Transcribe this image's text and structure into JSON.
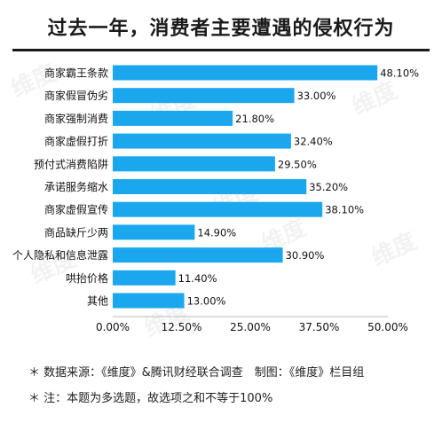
{
  "title": "过去一年，消费者主要遭遇的侵权行为",
  "notes": [
    "＊ 数据来源：《维度》&腾讯财经联合调查　制图：《维度》栏目组",
    "＊ 注：本题为多选题，故选项之和不等于100%"
  ],
  "watermark": "维度",
  "colors": {
    "bar": "#1aa7ee",
    "text": "#111111",
    "axis": "#bbbbbb"
  },
  "chart_data": {
    "type": "bar",
    "orientation": "horizontal",
    "categories": [
      "商家霸王条款",
      "商家假冒伪劣",
      "商家强制消费",
      "商家虚假打折",
      "预付式消费陷阱",
      "承诺服务缩水",
      "商家虚假宣传",
      "商品缺斤少两",
      "个人隐私和信息泄露",
      "哄抬价格",
      "其他"
    ],
    "values": [
      48.1,
      33.0,
      21.8,
      32.4,
      29.5,
      35.2,
      38.1,
      14.9,
      30.9,
      11.4,
      13.0
    ],
    "value_labels": [
      "48.10%",
      "33.00%",
      "21.80%",
      "32.40%",
      "29.50%",
      "35.20%",
      "38.10%",
      "14.90%",
      "30.90%",
      "11.40%",
      "13.00%"
    ],
    "xticks": [
      "0.00%",
      "12.50%",
      "25.00%",
      "37.50%",
      "50.00%"
    ],
    "xlim": [
      0,
      50
    ],
    "grid": false,
    "legend": "none"
  }
}
